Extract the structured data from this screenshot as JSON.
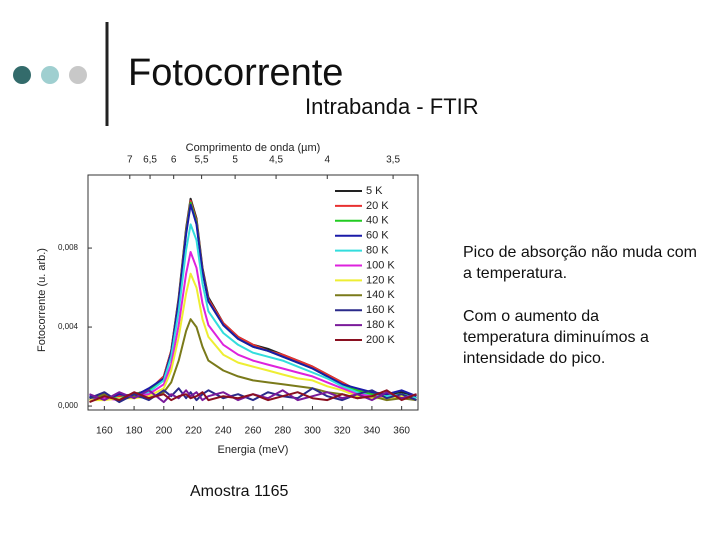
{
  "slide": {
    "title": "Fotocorrente",
    "subtitle": "Intrabanda - FTIR",
    "paragraphs": [
      "Pico de absorção não muda com a temperatura.",
      "Com o aumento da temperatura diminuímos a intensidade do pico."
    ],
    "caption": "Amostra 1165"
  },
  "chart_data": {
    "type": "line",
    "xlabel": "Energia (meV)",
    "ylabel": "Fotocorrente (u. arb.)",
    "x2label": "Comprimento de onda (µm)",
    "x": [
      150,
      160,
      170,
      180,
      190,
      200,
      205,
      210,
      215,
      218,
      222,
      226,
      230,
      240,
      250,
      260,
      270,
      280,
      290,
      300,
      310,
      320,
      330,
      340,
      350,
      360,
      370
    ],
    "xlim": [
      149,
      371
    ],
    "xticks": [
      160,
      180,
      200,
      220,
      240,
      260,
      280,
      300,
      320,
      340,
      360
    ],
    "ylim": [
      -0.0002,
      0.0117
    ],
    "yticks": [
      {
        "value": 0,
        "label": "0,000"
      },
      {
        "value": 0.004,
        "label": "0,004"
      },
      {
        "value": 0.008,
        "label": "0,008"
      }
    ],
    "x2ticks": [
      {
        "value": 7,
        "label": "7"
      },
      {
        "value": 6.5,
        "label": "6,5"
      },
      {
        "value": 6,
        "label": "6"
      },
      {
        "value": 5.5,
        "label": "5,5"
      },
      {
        "value": 5,
        "label": "5"
      },
      {
        "value": 4.5,
        "label": "4,5"
      },
      {
        "value": 4,
        "label": "4"
      },
      {
        "value": 3.5,
        "label": "3,5"
      }
    ],
    "series": [
      {
        "name": "5 K",
        "color": "#222222",
        "values": [
          0.0003,
          0.0005,
          0.0004,
          0.0006,
          0.0008,
          0.0015,
          0.0028,
          0.0055,
          0.009,
          0.0105,
          0.0095,
          0.007,
          0.0055,
          0.0042,
          0.0035,
          0.0031,
          0.0029,
          0.0026,
          0.0023,
          0.002,
          0.0016,
          0.0012,
          0.0008,
          0.0006,
          0.0005,
          0.0007,
          0.0004
        ]
      },
      {
        "name": "20 K",
        "color": "#e83030",
        "values": [
          0.0004,
          0.0004,
          0.0005,
          0.0006,
          0.0008,
          0.0015,
          0.0028,
          0.0054,
          0.0089,
          0.0104,
          0.0094,
          0.0069,
          0.0054,
          0.0042,
          0.0035,
          0.0031,
          0.0028,
          0.0026,
          0.0023,
          0.002,
          0.0016,
          0.0012,
          0.0008,
          0.0006,
          0.0006,
          0.0005,
          0.0004
        ]
      },
      {
        "name": "40 K",
        "color": "#22cc22",
        "values": [
          0.0003,
          0.0005,
          0.0004,
          0.0006,
          0.0008,
          0.0014,
          0.0027,
          0.0053,
          0.0088,
          0.0103,
          0.0093,
          0.0068,
          0.0053,
          0.0041,
          0.0034,
          0.003,
          0.0028,
          0.0025,
          0.0022,
          0.0019,
          0.0015,
          0.0011,
          0.0008,
          0.0006,
          0.0005,
          0.0006,
          0.0004
        ]
      },
      {
        "name": "60 K",
        "color": "#1a1aa8",
        "values": [
          0.0005,
          0.0003,
          0.0006,
          0.0005,
          0.0009,
          0.0014,
          0.0027,
          0.0053,
          0.0087,
          0.0102,
          0.0092,
          0.0068,
          0.0053,
          0.0041,
          0.0034,
          0.003,
          0.0028,
          0.0025,
          0.0022,
          0.0019,
          0.0015,
          0.0011,
          0.0009,
          0.0007,
          0.0006,
          0.0008,
          0.0005
        ]
      },
      {
        "name": "80 K",
        "color": "#33dddd",
        "values": [
          0.0003,
          0.0004,
          0.0004,
          0.0005,
          0.0007,
          0.0013,
          0.0025,
          0.0048,
          0.0079,
          0.0092,
          0.0084,
          0.0062,
          0.0048,
          0.0037,
          0.0031,
          0.0027,
          0.0025,
          0.0023,
          0.002,
          0.0017,
          0.0014,
          0.001,
          0.0007,
          0.0005,
          0.0005,
          0.0006,
          0.0004
        ]
      },
      {
        "name": "100 K",
        "color": "#dd22dd",
        "values": [
          0.0003,
          0.0004,
          0.0003,
          0.0005,
          0.0006,
          0.0011,
          0.0021,
          0.0041,
          0.0067,
          0.0078,
          0.007,
          0.0052,
          0.0041,
          0.0031,
          0.0026,
          0.0023,
          0.0021,
          0.0019,
          0.0017,
          0.0015,
          0.0012,
          0.0009,
          0.0006,
          0.0005,
          0.0004,
          0.0005,
          0.0003
        ]
      },
      {
        "name": "120 K",
        "color": "#eeee33",
        "values": [
          0.0003,
          0.0003,
          0.0004,
          0.0004,
          0.0005,
          0.0009,
          0.0018,
          0.0035,
          0.0057,
          0.0067,
          0.006,
          0.0044,
          0.0035,
          0.0026,
          0.0022,
          0.002,
          0.0018,
          0.0016,
          0.0014,
          0.0013,
          0.001,
          0.0008,
          0.0005,
          0.0004,
          0.0004,
          0.0005,
          0.0003
        ]
      },
      {
        "name": "140 K",
        "color": "#7a7a1a",
        "values": [
          0.0004,
          0.0006,
          0.0003,
          0.0005,
          0.0004,
          0.0007,
          0.0012,
          0.0023,
          0.0038,
          0.0044,
          0.004,
          0.003,
          0.0023,
          0.0018,
          0.0015,
          0.0013,
          0.0012,
          0.0011,
          0.001,
          0.0009,
          0.0007,
          0.0006,
          0.0004,
          0.0005,
          0.0003,
          0.0004,
          0.0003
        ]
      },
      {
        "name": "160 K",
        "color": "#2a2a8a",
        "values": [
          0.0004,
          0.0007,
          0.0002,
          0.0006,
          0.0003,
          0.0008,
          0.0005,
          0.0009,
          0.0004,
          0.0007,
          0.0003,
          0.0006,
          0.0008,
          0.0004,
          0.0006,
          0.0003,
          0.0007,
          0.0005,
          0.0004,
          0.0009,
          0.0005,
          0.0003,
          0.0006,
          0.0008,
          0.0004,
          0.0006,
          0.0003
        ]
      },
      {
        "name": "180 K",
        "color": "#7a1a9a",
        "values": [
          0.0006,
          0.0003,
          0.0007,
          0.0004,
          0.0008,
          0.0002,
          0.0006,
          0.0004,
          0.0008,
          0.0005,
          0.0007,
          0.0003,
          0.0005,
          0.0007,
          0.0003,
          0.0006,
          0.0004,
          0.0008,
          0.0003,
          0.0005,
          0.0007,
          0.0004,
          0.0006,
          0.0003,
          0.0007,
          0.0004,
          0.0006
        ]
      },
      {
        "name": "200 K",
        "color": "#8a1020",
        "values": [
          0.0002,
          0.0005,
          0.0003,
          0.0007,
          0.0004,
          0.0006,
          0.0003,
          0.0005,
          0.0006,
          0.0004,
          0.0005,
          0.0007,
          0.0003,
          0.0005,
          0.0004,
          0.0006,
          0.0003,
          0.0005,
          0.0007,
          0.0004,
          0.0003,
          0.0006,
          0.0004,
          0.0005,
          0.0008,
          0.0003,
          0.0006
        ]
      }
    ]
  }
}
